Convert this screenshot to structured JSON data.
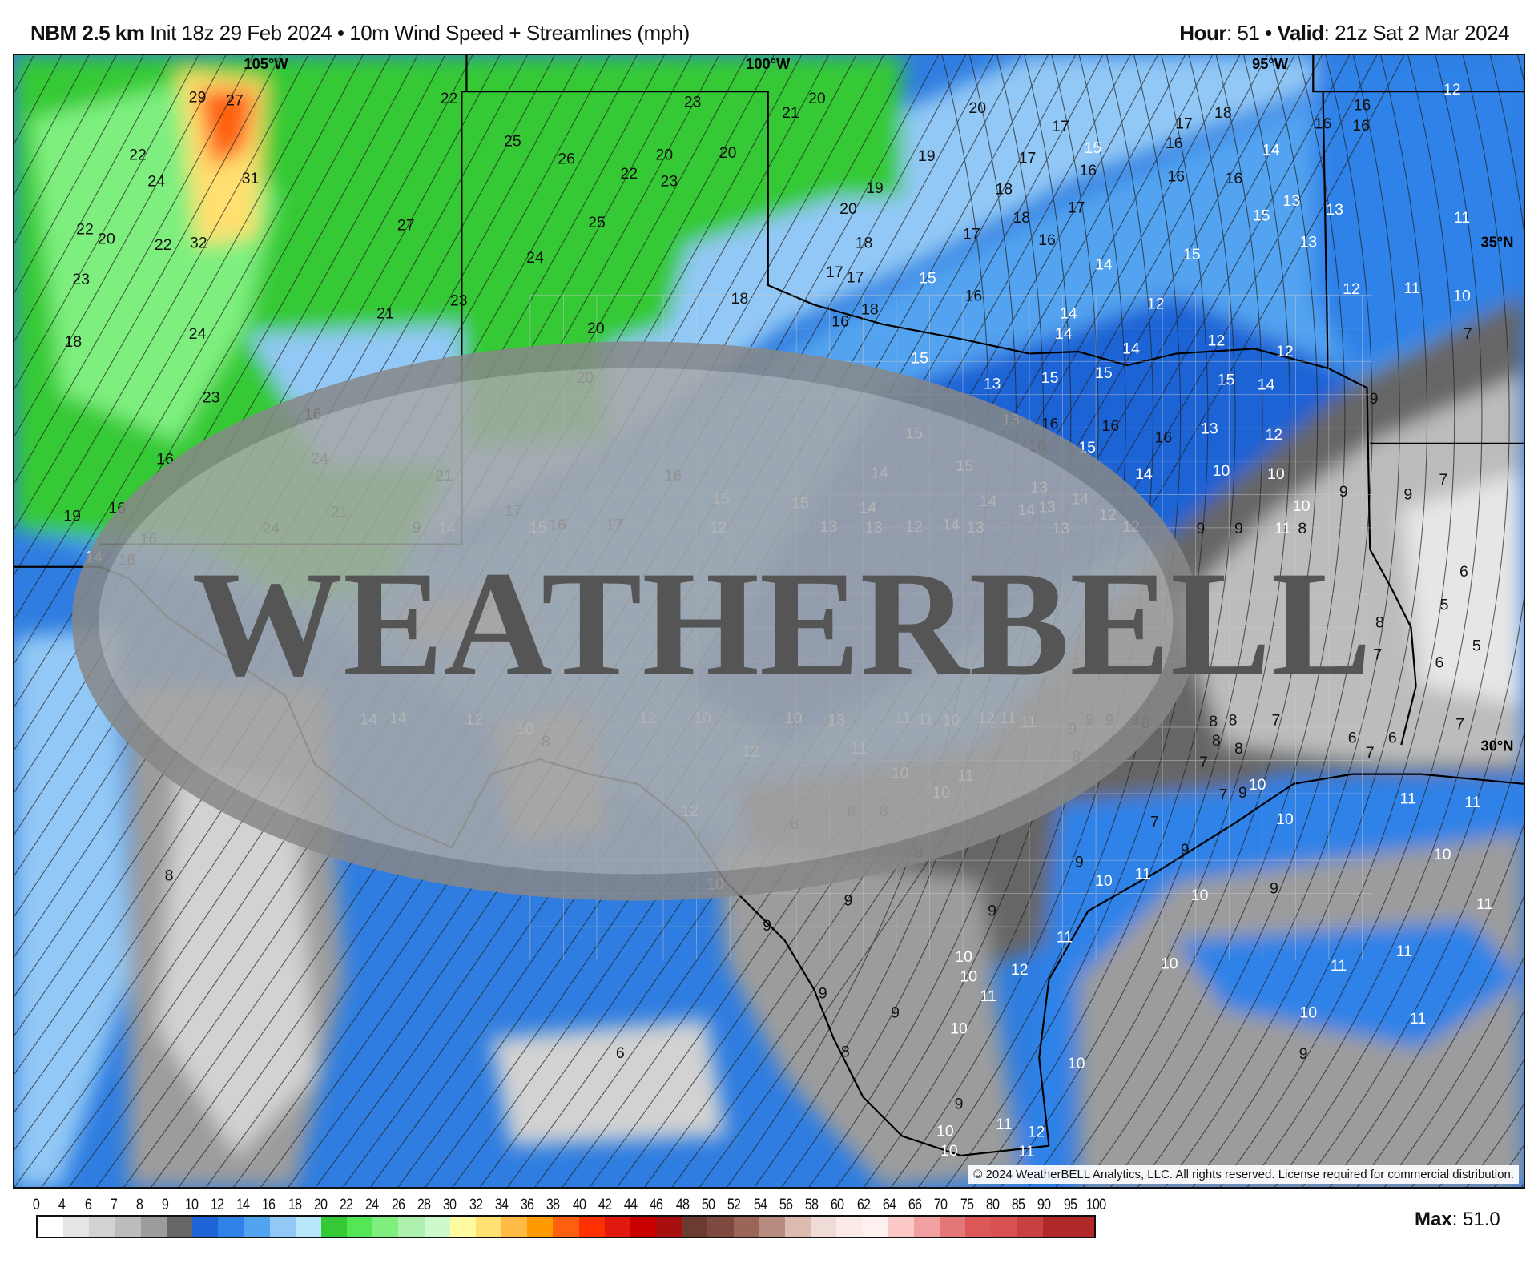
{
  "header": {
    "model": "NBM 2.5 km",
    "init": "Init 18z 29 Feb 2024",
    "separator": "•",
    "product": "10m Wind Speed + Streamlines (mph)",
    "hour_label": "Hour",
    "hour_value": ": 51",
    "valid_label": "Valid",
    "valid_value": ": 21z Sat 2 Mar 2024"
  },
  "map": {
    "longitude_labels": [
      "105°W",
      "100°W",
      "95°W"
    ],
    "latitude_labels": [
      "35°N",
      "30°N"
    ],
    "logo_text": "WeatherBELL",
    "copyright": "© 2024 WeatherBELL Analytics, LLC. All rights reserved. License required for commercial distribution.",
    "value_labels": [
      "29",
      "27",
      "22",
      "23",
      "21",
      "20",
      "20",
      "17",
      "18",
      "17",
      "16",
      "16",
      "16",
      "16",
      "12",
      "14",
      "22",
      "24",
      "31",
      "25",
      "26",
      "22",
      "20",
      "23",
      "20",
      "19",
      "17",
      "15",
      "16",
      "16",
      "16",
      "19",
      "18",
      "17",
      "15",
      "13",
      "13",
      "11",
      "22",
      "20",
      "22",
      "32",
      "27",
      "25",
      "20",
      "18",
      "17",
      "16",
      "13",
      "23",
      "24",
      "18",
      "17",
      "17",
      "15",
      "14",
      "15",
      "12",
      "11",
      "10",
      "18",
      "16",
      "12",
      "14",
      "21",
      "23",
      "16",
      "18",
      "14",
      "7",
      "18",
      "24",
      "20",
      "15",
      "15",
      "15",
      "14",
      "12",
      "12",
      "15",
      "14",
      "20",
      "13",
      "9",
      "23",
      "16",
      "13",
      "16",
      "16",
      "16",
      "13",
      "12",
      "15",
      "16",
      "15",
      "16",
      "24",
      "21",
      "16",
      "14",
      "15",
      "14",
      "10",
      "10",
      "7",
      "9",
      "9",
      "19",
      "16",
      "21",
      "17",
      "15",
      "15",
      "14",
      "14",
      "14",
      "14",
      "12",
      "10",
      "17",
      "14",
      "13",
      "12",
      "11",
      "16",
      "14",
      "16",
      "24",
      "14",
      "15",
      "16",
      "13",
      "13",
      "9",
      "9",
      "6",
      "13",
      "13",
      "13",
      "12",
      "8",
      "9",
      "12",
      "5",
      "8",
      "8",
      "13",
      "10",
      "12",
      "5",
      "12",
      "7",
      "6",
      "12",
      "11",
      "11",
      "8",
      "9",
      "9",
      "9",
      "10",
      "10",
      "11",
      "11",
      "7",
      "14",
      "14",
      "10",
      "8",
      "9",
      "8",
      "8",
      "8",
      "6",
      "6",
      "7",
      "7",
      "12",
      "11",
      "8",
      "7",
      "10",
      "11",
      "10",
      "7",
      "10",
      "9",
      "11",
      "11",
      "12",
      "8",
      "8",
      "8",
      "7",
      "10",
      "8",
      "9",
      "9",
      "10",
      "8",
      "10",
      "10",
      "11",
      "10",
      "9",
      "9",
      "9",
      "11",
      "9",
      "11",
      "10",
      "10",
      "12",
      "10",
      "11",
      "11",
      "9",
      "11",
      "9",
      "10",
      "10",
      "11",
      "6",
      "8",
      "10",
      "9",
      "9",
      "11",
      "10",
      "12",
      "10",
      "11"
    ]
  },
  "colorbar": {
    "ticks": [
      "0",
      "4",
      "6",
      "7",
      "8",
      "9",
      "10",
      "12",
      "14",
      "16",
      "18",
      "20",
      "22",
      "24",
      "26",
      "28",
      "30",
      "32",
      "34",
      "36",
      "38",
      "40",
      "42",
      "44",
      "46",
      "48",
      "50",
      "52",
      "54",
      "56",
      "58",
      "60",
      "62",
      "64",
      "66",
      "70",
      "75",
      "80",
      "85",
      "90",
      "95",
      "100"
    ],
    "colors": [
      "#ffffff",
      "#e6e6e6",
      "#d2d2d2",
      "#bcbcbc",
      "#9c9c9c",
      "#666666",
      "#1f64d6",
      "#2f82e8",
      "#52a3f0",
      "#92c8f5",
      "#b8e8fa",
      "#36c936",
      "#55e655",
      "#7eef7e",
      "#aef0ae",
      "#ccfacc",
      "#fffaa0",
      "#ffe070",
      "#ffbb44",
      "#ff9a00",
      "#ff6010",
      "#ff3000",
      "#e01a10",
      "#c80000",
      "#a81010",
      "#6b3a30",
      "#7e4a40",
      "#9a6658",
      "#b88c80",
      "#dcbab0",
      "#f0dcd6",
      "#fbeae6",
      "#fdf0ee",
      "#fcc8c8",
      "#f2a0a2",
      "#e47878",
      "#dc5858",
      "#d85050",
      "#c84040",
      "#b02828",
      "#b02828"
    ],
    "units": "mph"
  },
  "max": {
    "label": "Max",
    "value": ": 51.0"
  }
}
